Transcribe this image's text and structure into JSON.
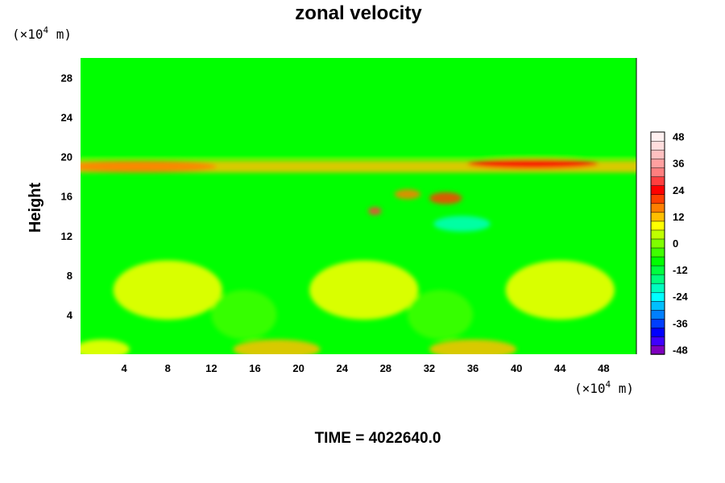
{
  "chart_data": {
    "type": "heatmap",
    "title": "zonal velocity",
    "ylabel": "Height",
    "x_unit": {
      "prefix": "(×10",
      "exp": "4",
      "suffix": " m)"
    },
    "y_unit": {
      "prefix": "(×10",
      "exp": "4",
      "suffix": " m)"
    },
    "xlim": [
      0,
      51
    ],
    "ylim": [
      0,
      30
    ],
    "x_ticks": [
      4,
      8,
      12,
      16,
      20,
      24,
      28,
      32,
      36,
      40,
      44,
      48
    ],
    "y_ticks": [
      4,
      8,
      12,
      16,
      20,
      24,
      28
    ],
    "colorbar": {
      "range": [
        -50,
        50
      ],
      "step": 4,
      "tick_values": [
        48,
        36,
        24,
        12,
        0,
        -12,
        -24,
        -36,
        -48
      ],
      "colors": [
        "#7f00bf",
        "#3f00ff",
        "#0000ff",
        "#003fff",
        "#007fff",
        "#00bfff",
        "#00ffff",
        "#00ffbf",
        "#00ff7f",
        "#00ff3f",
        "#00ff00",
        "#3fff00",
        "#7fff00",
        "#bfff00",
        "#ffff00",
        "#ffbf00",
        "#ff7f00",
        "#ff3f00",
        "#ff0000",
        "#ff3f3f",
        "#ff7f7f",
        "#ffa0a0",
        "#ffc0c0",
        "#ffdddd",
        "#fff0f0"
      ]
    },
    "features": [
      {
        "kind": "band",
        "y": [
          19.8,
          20.3
        ],
        "value": -8,
        "note": "cyan stripe near top of jet layer"
      },
      {
        "kind": "band",
        "y": [
          18.4,
          19.6
        ],
        "value": 14,
        "note": "yellow layer left and right"
      },
      {
        "kind": "blob",
        "x": 5.5,
        "y": 19.0,
        "rx": 7,
        "ry": 0.6,
        "value": 18
      },
      {
        "kind": "blob",
        "x": 41.5,
        "y": 19.3,
        "rx": 6,
        "ry": 0.5,
        "value": 24
      },
      {
        "kind": "blob",
        "x": 27,
        "y": 14.5,
        "rx": 0.6,
        "ry": 0.4,
        "value": 30
      },
      {
        "kind": "blob",
        "x": 35,
        "y": 13.2,
        "rx": 2.6,
        "ry": 0.8,
        "value": -22
      },
      {
        "kind": "blob",
        "x": 33.5,
        "y": 15.8,
        "rx": 1.5,
        "ry": 0.6,
        "value": 20
      },
      {
        "kind": "blob",
        "x": 30,
        "y": 16.2,
        "rx": 1.2,
        "ry": 0.5,
        "value": 18
      },
      {
        "kind": "blob",
        "x": 8,
        "y": 6.5,
        "rx": 5,
        "ry": 3,
        "value": 8
      },
      {
        "kind": "blob",
        "x": 26,
        "y": 6.5,
        "rx": 5,
        "ry": 3,
        "value": 8
      },
      {
        "kind": "blob",
        "x": 44,
        "y": 6.5,
        "rx": 5,
        "ry": 3,
        "value": 8
      },
      {
        "kind": "blob",
        "x": 18,
        "y": 0.5,
        "rx": 4,
        "ry": 1.0,
        "value": 12
      },
      {
        "kind": "blob",
        "x": 36,
        "y": 0.5,
        "rx": 4,
        "ry": 1.0,
        "value": 12
      },
      {
        "kind": "blob",
        "x": 2,
        "y": 0.5,
        "rx": 2.5,
        "ry": 1.0,
        "value": 10
      },
      {
        "kind": "blob",
        "x": 15,
        "y": 4,
        "rx": 3,
        "ry": 2.5,
        "value": -6
      },
      {
        "kind": "blob",
        "x": 33,
        "y": 4,
        "rx": 3,
        "ry": 2.5,
        "value": -6
      }
    ]
  },
  "footer": {
    "time_label": "TIME = 4022640.0"
  }
}
